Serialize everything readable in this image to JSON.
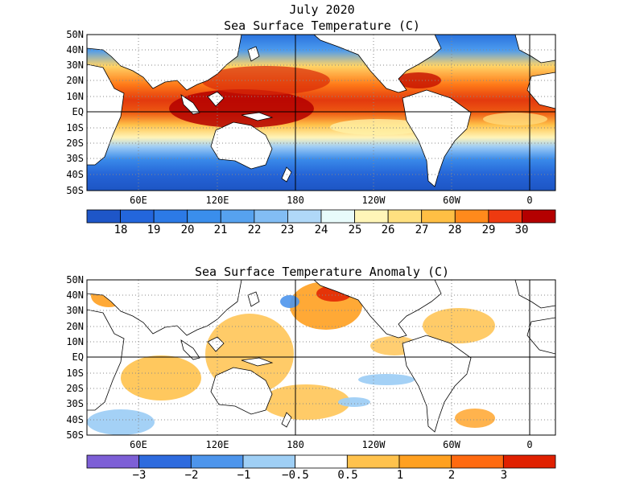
{
  "figure": {
    "title_line1": "July 2020",
    "title_line2": "Sea Surface Temperature (C)",
    "title_anomaly": "Sea Surface Temperature Anomaly (C)"
  },
  "axes": {
    "lat_labels": [
      "50N",
      "40N",
      "30N",
      "20N",
      "10N",
      "EQ",
      "10S",
      "20S",
      "30S",
      "40S",
      "50S"
    ],
    "lon_labels": [
      "60E",
      "120E",
      "180",
      "120W",
      "60W",
      "0"
    ]
  },
  "sst_colorbar": {
    "labels": [
      "18",
      "19",
      "20",
      "21",
      "22",
      "23",
      "24",
      "25",
      "26",
      "27",
      "28",
      "29",
      "30"
    ],
    "colors": [
      "#1e56c8",
      "#2366dc",
      "#2c7ae6",
      "#3a8eec",
      "#56a2ef",
      "#82bdf4",
      "#b0d8f8",
      "#e8fbfb",
      "#fff5b8",
      "#ffe080",
      "#ffbf44",
      "#ff8a1c",
      "#ee3a10",
      "#b40000"
    ]
  },
  "anomaly_colorbar": {
    "labels": [
      "-3",
      "-2",
      "-1",
      "-0.5",
      "0.5",
      "1",
      "2",
      "3"
    ],
    "colors": [
      "#7d5fd6",
      "#2e6bde",
      "#4d95ec",
      "#9fcff5",
      "#ffffff",
      "#ffc24d",
      "#ffa020",
      "#ff6a10",
      "#e02000"
    ]
  }
}
